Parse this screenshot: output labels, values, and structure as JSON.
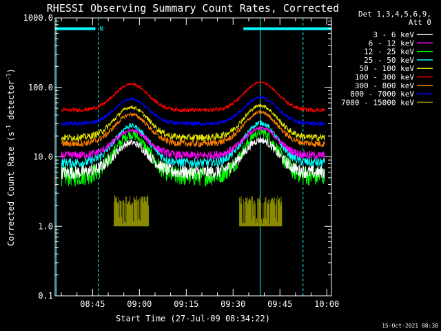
{
  "chart_data": {
    "type": "line",
    "title": "RHESSI Observing Summary Count Rates, Corrected",
    "xlabel": "Start Time (27-Jul-09 08:34:22)",
    "ylabel_main": "Corrected Count Rate (s",
    "ylabel_sup1": "-1",
    "ylabel_mid": " detector",
    "ylabel_sup2": "-1",
    "ylabel_end": ")",
    "y_scale": "log",
    "ylim": [
      0.1,
      1000.0
    ],
    "yticks": [
      0.1,
      1.0,
      10.0,
      100.0,
      1000.0
    ],
    "ytick_labels": [
      "0.1",
      "1.0",
      "10.0",
      "100.0",
      "1000.0"
    ],
    "xlim_minutes": [
      -1.4,
      87.1
    ],
    "xticks_minutes": [
      10.6,
      25.6,
      40.6,
      55.6,
      70.6,
      85.6
    ],
    "xtick_labels": [
      "08:45",
      "09:00",
      "09:15",
      "09:30",
      "09:45",
      "10:00"
    ],
    "minor_tick_step_minutes": 5,
    "legend_header": [
      "Det 1,3,4,5,6,9,",
      "Att 0"
    ],
    "legend_position": "right",
    "series": [
      {
        "name": "3 - 6 keV",
        "color": "#ffffff",
        "base": 6.0,
        "peak1": 16.0,
        "peak2": 17.5,
        "noise": 0.1
      },
      {
        "name": "6 - 12 keV",
        "color": "#ff00ff",
        "base": 10.5,
        "peak1": 24.0,
        "peak2": 26.0,
        "noise": 0.06
      },
      {
        "name": "12 - 25 keV",
        "color": "#00ff00",
        "base": 5.2,
        "peak1": 21.0,
        "peak2": 23.0,
        "noise": 0.14
      },
      {
        "name": "25 - 50 keV",
        "color": "#00ffff",
        "base": 8.2,
        "peak1": 28.0,
        "peak2": 31.0,
        "noise": 0.07
      },
      {
        "name": "50 - 100 keV",
        "color": "#e6e600",
        "base": 19.0,
        "peak1": 52.0,
        "peak2": 55.0,
        "noise": 0.05
      },
      {
        "name": "100 - 300 keV",
        "color": "#ff0000",
        "base": 47.0,
        "peak1": 112.0,
        "peak2": 118.0,
        "noise": 0.03
      },
      {
        "name": "300 - 800 keV",
        "color": "#ff8000",
        "base": 15.5,
        "peak1": 41.0,
        "peak2": 44.0,
        "noise": 0.05
      },
      {
        "name": "800 - 7000 keV",
        "color": "#0000ff",
        "base": 30.0,
        "peak1": 68.0,
        "peak2": 72.0,
        "noise": 0.03
      },
      {
        "name": "7000 - 15000 keV",
        "color": "#8a8a00",
        "base": 1.0,
        "peak1": 2.0,
        "peak2": 2.0,
        "noise": 0.0
      }
    ],
    "peak_times_minutes": [
      23.0,
      64.4
    ],
    "peak_width_minutes": 7.5,
    "flag_bars": [
      {
        "label": "N",
        "color": "#00ffff",
        "start_min": -1.4,
        "end_min": 11.5,
        "level": 700
      },
      {
        "label": "",
        "color": "#00ffff",
        "start_min": 58.9,
        "end_min": 87.1,
        "level": 700
      }
    ],
    "vertical_markers": [
      {
        "t_min": -1.0,
        "style": "solid"
      },
      {
        "t_min": 12.4,
        "style": "dashed"
      },
      {
        "t_min": 64.3,
        "style": "solid"
      },
      {
        "t_min": 78.0,
        "style": "dashed"
      }
    ],
    "timestamp": "15-Oct-2021 08:38"
  }
}
